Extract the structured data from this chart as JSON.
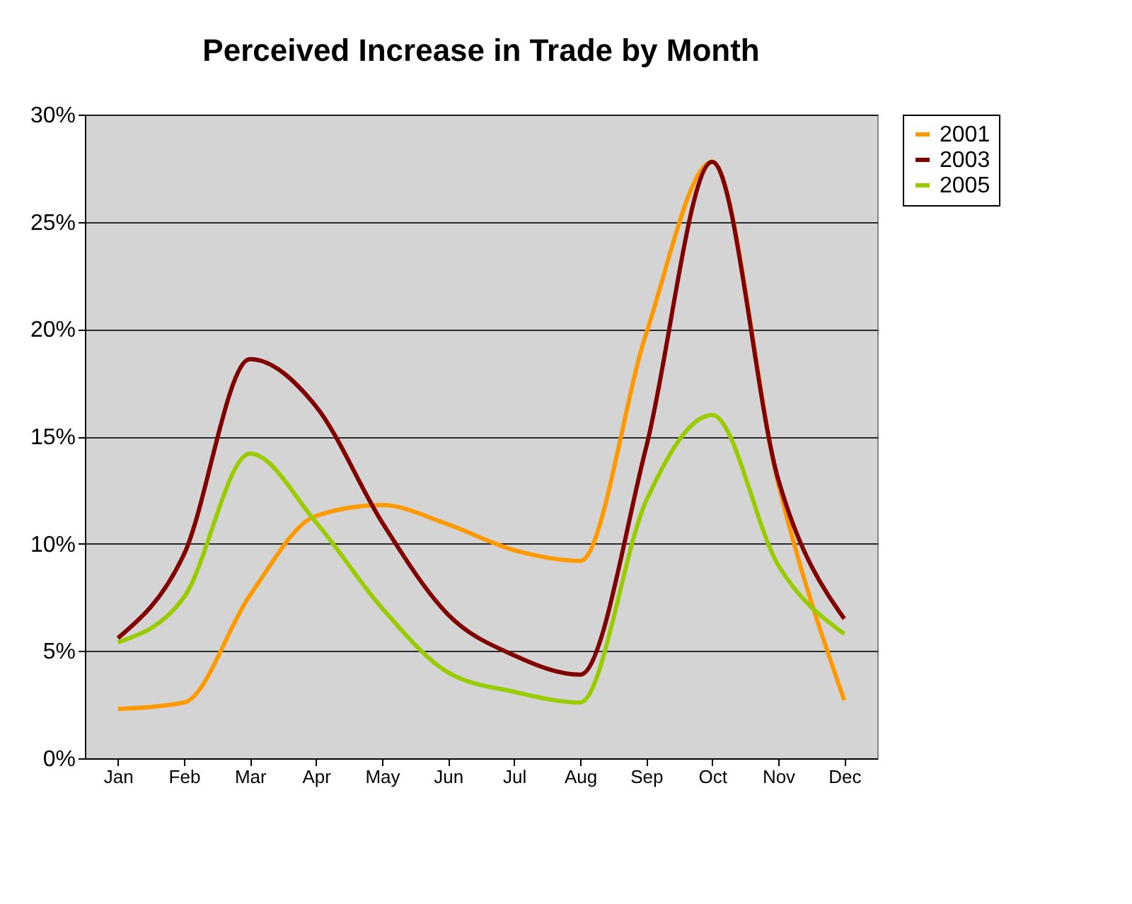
{
  "chart_data": {
    "type": "line",
    "title": "Perceived Increase in Trade by Month",
    "categories": [
      "Jan",
      "Feb",
      "Mar",
      "Apr",
      "May",
      "Jun",
      "Jul",
      "Aug",
      "Sep",
      "Oct",
      "Nov",
      "Dec"
    ],
    "series": [
      {
        "name": "2001",
        "color": "#ff9900",
        "values": [
          2.3,
          2.6,
          7.6,
          11.3,
          11.8,
          10.9,
          9.7,
          9.2,
          19.8,
          27.8,
          12.8,
          2.7
        ]
      },
      {
        "name": "2003",
        "color": "#800000",
        "values": [
          5.6,
          9.5,
          18.6,
          16.4,
          11.0,
          6.7,
          4.8,
          3.9,
          14.5,
          27.8,
          13.0,
          6.5
        ]
      },
      {
        "name": "2005",
        "color": "#99cc00",
        "values": [
          5.4,
          7.5,
          14.2,
          11.0,
          7.0,
          4.0,
          3.1,
          2.6,
          12.0,
          16.0,
          9.0,
          5.8
        ]
      }
    ],
    "ylim": [
      0,
      30
    ],
    "yticks": [
      {
        "value": 0,
        "label": "0%"
      },
      {
        "value": 5,
        "label": "5%"
      },
      {
        "value": 10,
        "label": "10%"
      },
      {
        "value": 15,
        "label": "15%"
      },
      {
        "value": 20,
        "label": "20%"
      },
      {
        "value": 25,
        "label": "25%"
      },
      {
        "value": 30,
        "label": "30%"
      }
    ],
    "grid": "y",
    "legend": "right",
    "marker": "none",
    "line_style": "solid"
  }
}
